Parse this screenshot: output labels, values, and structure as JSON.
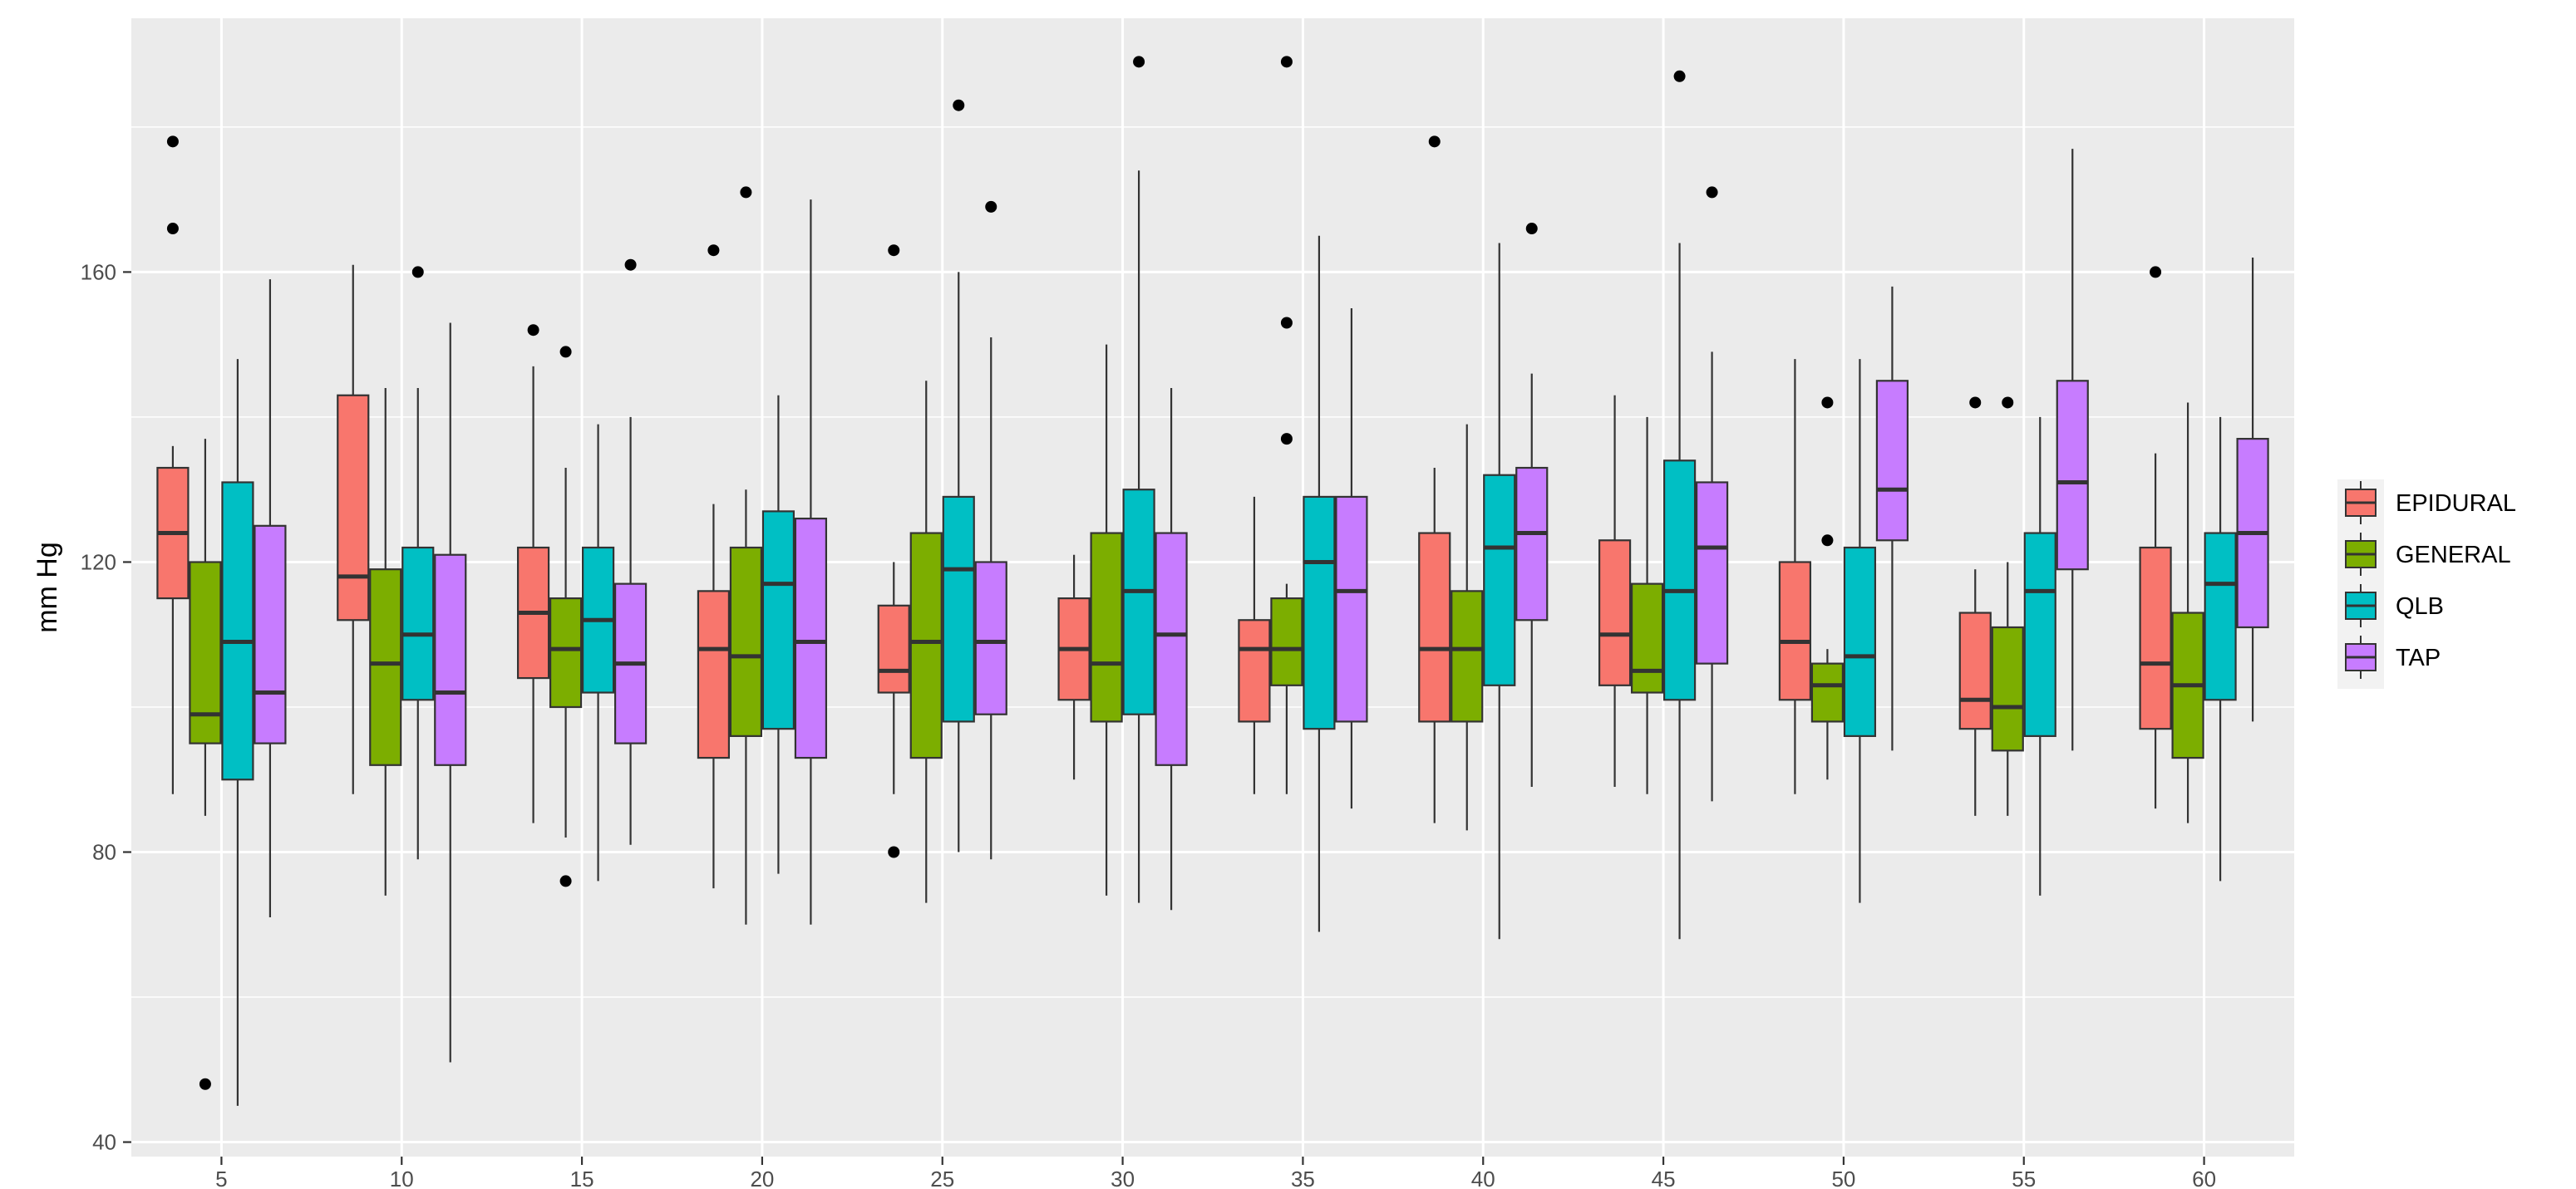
{
  "chart_data": {
    "type": "boxplot",
    "title": "",
    "xlabel": "",
    "ylabel": "mm Hg",
    "ylim": [
      38,
      195
    ],
    "yticks": [
      40,
      80,
      120,
      160
    ],
    "categories": [
      "5",
      "10",
      "15",
      "20",
      "25",
      "30",
      "35",
      "40",
      "45",
      "50",
      "55",
      "60"
    ],
    "grid": true,
    "legend_position": "right",
    "colors": {
      "EPIDURAL": "#F8766D",
      "GENERAL": "#7CAE00",
      "QLB": "#00BFC4",
      "TAP": "#C77CFF",
      "panel": "#EBEBEB",
      "grid": "#FFFFFF",
      "outlier": "#000000",
      "border": "#333333"
    },
    "series": [
      {
        "name": "EPIDURAL",
        "boxes": [
          {
            "lower": 88,
            "q1": 115,
            "median": 124,
            "q3": 133,
            "upper": 136,
            "outliers": [
              166,
              178
            ]
          },
          {
            "lower": 88,
            "q1": 112,
            "median": 118,
            "q3": 143,
            "upper": 161,
            "outliers": []
          },
          {
            "lower": 84,
            "q1": 104,
            "median": 113,
            "q3": 122,
            "upper": 147,
            "outliers": [
              152
            ]
          },
          {
            "lower": 75,
            "q1": 93,
            "median": 108,
            "q3": 116,
            "upper": 128,
            "outliers": [
              163
            ]
          },
          {
            "lower": 88,
            "q1": 102,
            "median": 105,
            "q3": 114,
            "upper": 120,
            "outliers": [
              80,
              163
            ]
          },
          {
            "lower": 90,
            "q1": 101,
            "median": 108,
            "q3": 115,
            "upper": 121,
            "outliers": []
          },
          {
            "lower": 88,
            "q1": 98,
            "median": 108,
            "q3": 112,
            "upper": 129,
            "outliers": []
          },
          {
            "lower": 84,
            "q1": 98,
            "median": 108,
            "q3": 124,
            "upper": 133,
            "outliers": [
              178
            ]
          },
          {
            "lower": 89,
            "q1": 103,
            "median": 110,
            "q3": 123,
            "upper": 143,
            "outliers": []
          },
          {
            "lower": 88,
            "q1": 101,
            "median": 109,
            "q3": 120,
            "upper": 148,
            "outliers": []
          },
          {
            "lower": 85,
            "q1": 97,
            "median": 101,
            "q3": 113,
            "upper": 119,
            "outliers": [
              142
            ]
          },
          {
            "lower": 86,
            "q1": 97,
            "median": 106,
            "q3": 122,
            "upper": 135,
            "outliers": [
              160
            ]
          }
        ]
      },
      {
        "name": "GENERAL",
        "boxes": [
          {
            "lower": 85,
            "q1": 95,
            "median": 99,
            "q3": 120,
            "upper": 137,
            "outliers": [
              48
            ]
          },
          {
            "lower": 74,
            "q1": 92,
            "median": 106,
            "q3": 119,
            "upper": 144,
            "outliers": []
          },
          {
            "lower": 82,
            "q1": 100,
            "median": 108,
            "q3": 115,
            "upper": 133,
            "outliers": [
              76,
              149
            ]
          },
          {
            "lower": 70,
            "q1": 96,
            "median": 107,
            "q3": 122,
            "upper": 130,
            "outliers": [
              171
            ]
          },
          {
            "lower": 73,
            "q1": 93,
            "median": 109,
            "q3": 124,
            "upper": 145,
            "outliers": []
          },
          {
            "lower": 74,
            "q1": 98,
            "median": 106,
            "q3": 124,
            "upper": 150,
            "outliers": []
          },
          {
            "lower": 88,
            "q1": 103,
            "median": 108,
            "q3": 115,
            "upper": 117,
            "outliers": [
              137,
              153,
              189
            ]
          },
          {
            "lower": 83,
            "q1": 98,
            "median": 108,
            "q3": 116,
            "upper": 139,
            "outliers": []
          },
          {
            "lower": 88,
            "q1": 102,
            "median": 105,
            "q3": 117,
            "upper": 140,
            "outliers": []
          },
          {
            "lower": 90,
            "q1": 98,
            "median": 103,
            "q3": 106,
            "upper": 108,
            "outliers": [
              123,
              142
            ]
          },
          {
            "lower": 85,
            "q1": 94,
            "median": 100,
            "q3": 111,
            "upper": 120,
            "outliers": [
              142
            ]
          },
          {
            "lower": 84,
            "q1": 93,
            "median": 103,
            "q3": 113,
            "upper": 142,
            "outliers": []
          }
        ]
      },
      {
        "name": "QLB",
        "boxes": [
          {
            "lower": 45,
            "q1": 90,
            "median": 109,
            "q3": 131,
            "upper": 148,
            "outliers": []
          },
          {
            "lower": 79,
            "q1": 101,
            "median": 110,
            "q3": 122,
            "upper": 144,
            "outliers": [
              160
            ]
          },
          {
            "lower": 76,
            "q1": 102,
            "median": 112,
            "q3": 122,
            "upper": 139,
            "outliers": []
          },
          {
            "lower": 77,
            "q1": 97,
            "median": 117,
            "q3": 127,
            "upper": 143,
            "outliers": []
          },
          {
            "lower": 80,
            "q1": 98,
            "median": 119,
            "q3": 129,
            "upper": 160,
            "outliers": [
              183
            ]
          },
          {
            "lower": 73,
            "q1": 99,
            "median": 116,
            "q3": 130,
            "upper": 174,
            "outliers": [
              189
            ]
          },
          {
            "lower": 69,
            "q1": 97,
            "median": 120,
            "q3": 129,
            "upper": 165,
            "outliers": []
          },
          {
            "lower": 68,
            "q1": 103,
            "median": 122,
            "q3": 132,
            "upper": 164,
            "outliers": []
          },
          {
            "lower": 68,
            "q1": 101,
            "median": 116,
            "q3": 134,
            "upper": 164,
            "outliers": [
              187
            ]
          },
          {
            "lower": 73,
            "q1": 96,
            "median": 107,
            "q3": 122,
            "upper": 148,
            "outliers": []
          },
          {
            "lower": 74,
            "q1": 96,
            "median": 116,
            "q3": 124,
            "upper": 140,
            "outliers": []
          },
          {
            "lower": 76,
            "q1": 101,
            "median": 117,
            "q3": 124,
            "upper": 140,
            "outliers": []
          }
        ]
      },
      {
        "name": "TAP",
        "boxes": [
          {
            "lower": 71,
            "q1": 95,
            "median": 102,
            "q3": 125,
            "upper": 159,
            "outliers": []
          },
          {
            "lower": 51,
            "q1": 92,
            "median": 102,
            "q3": 121,
            "upper": 153,
            "outliers": []
          },
          {
            "lower": 81,
            "q1": 95,
            "median": 106,
            "q3": 117,
            "upper": 140,
            "outliers": [
              161
            ]
          },
          {
            "lower": 70,
            "q1": 93,
            "median": 109,
            "q3": 126,
            "upper": 170,
            "outliers": []
          },
          {
            "lower": 79,
            "q1": 99,
            "median": 109,
            "q3": 120,
            "upper": 151,
            "outliers": [
              169
            ]
          },
          {
            "lower": 72,
            "q1": 92,
            "median": 110,
            "q3": 124,
            "upper": 144,
            "outliers": []
          },
          {
            "lower": 86,
            "q1": 98,
            "median": 116,
            "q3": 129,
            "upper": 155,
            "outliers": []
          },
          {
            "lower": 89,
            "q1": 112,
            "median": 124,
            "q3": 133,
            "upper": 146,
            "outliers": [
              166
            ]
          },
          {
            "lower": 87,
            "q1": 106,
            "median": 122,
            "q3": 131,
            "upper": 149,
            "outliers": [
              171
            ]
          },
          {
            "lower": 94,
            "q1": 123,
            "median": 130,
            "q3": 145,
            "upper": 158,
            "outliers": []
          },
          {
            "lower": 94,
            "q1": 119,
            "median": 131,
            "q3": 145,
            "upper": 177,
            "outliers": []
          },
          {
            "lower": 98,
            "q1": 111,
            "median": 124,
            "q3": 137,
            "upper": 162,
            "outliers": []
          }
        ]
      }
    ]
  }
}
